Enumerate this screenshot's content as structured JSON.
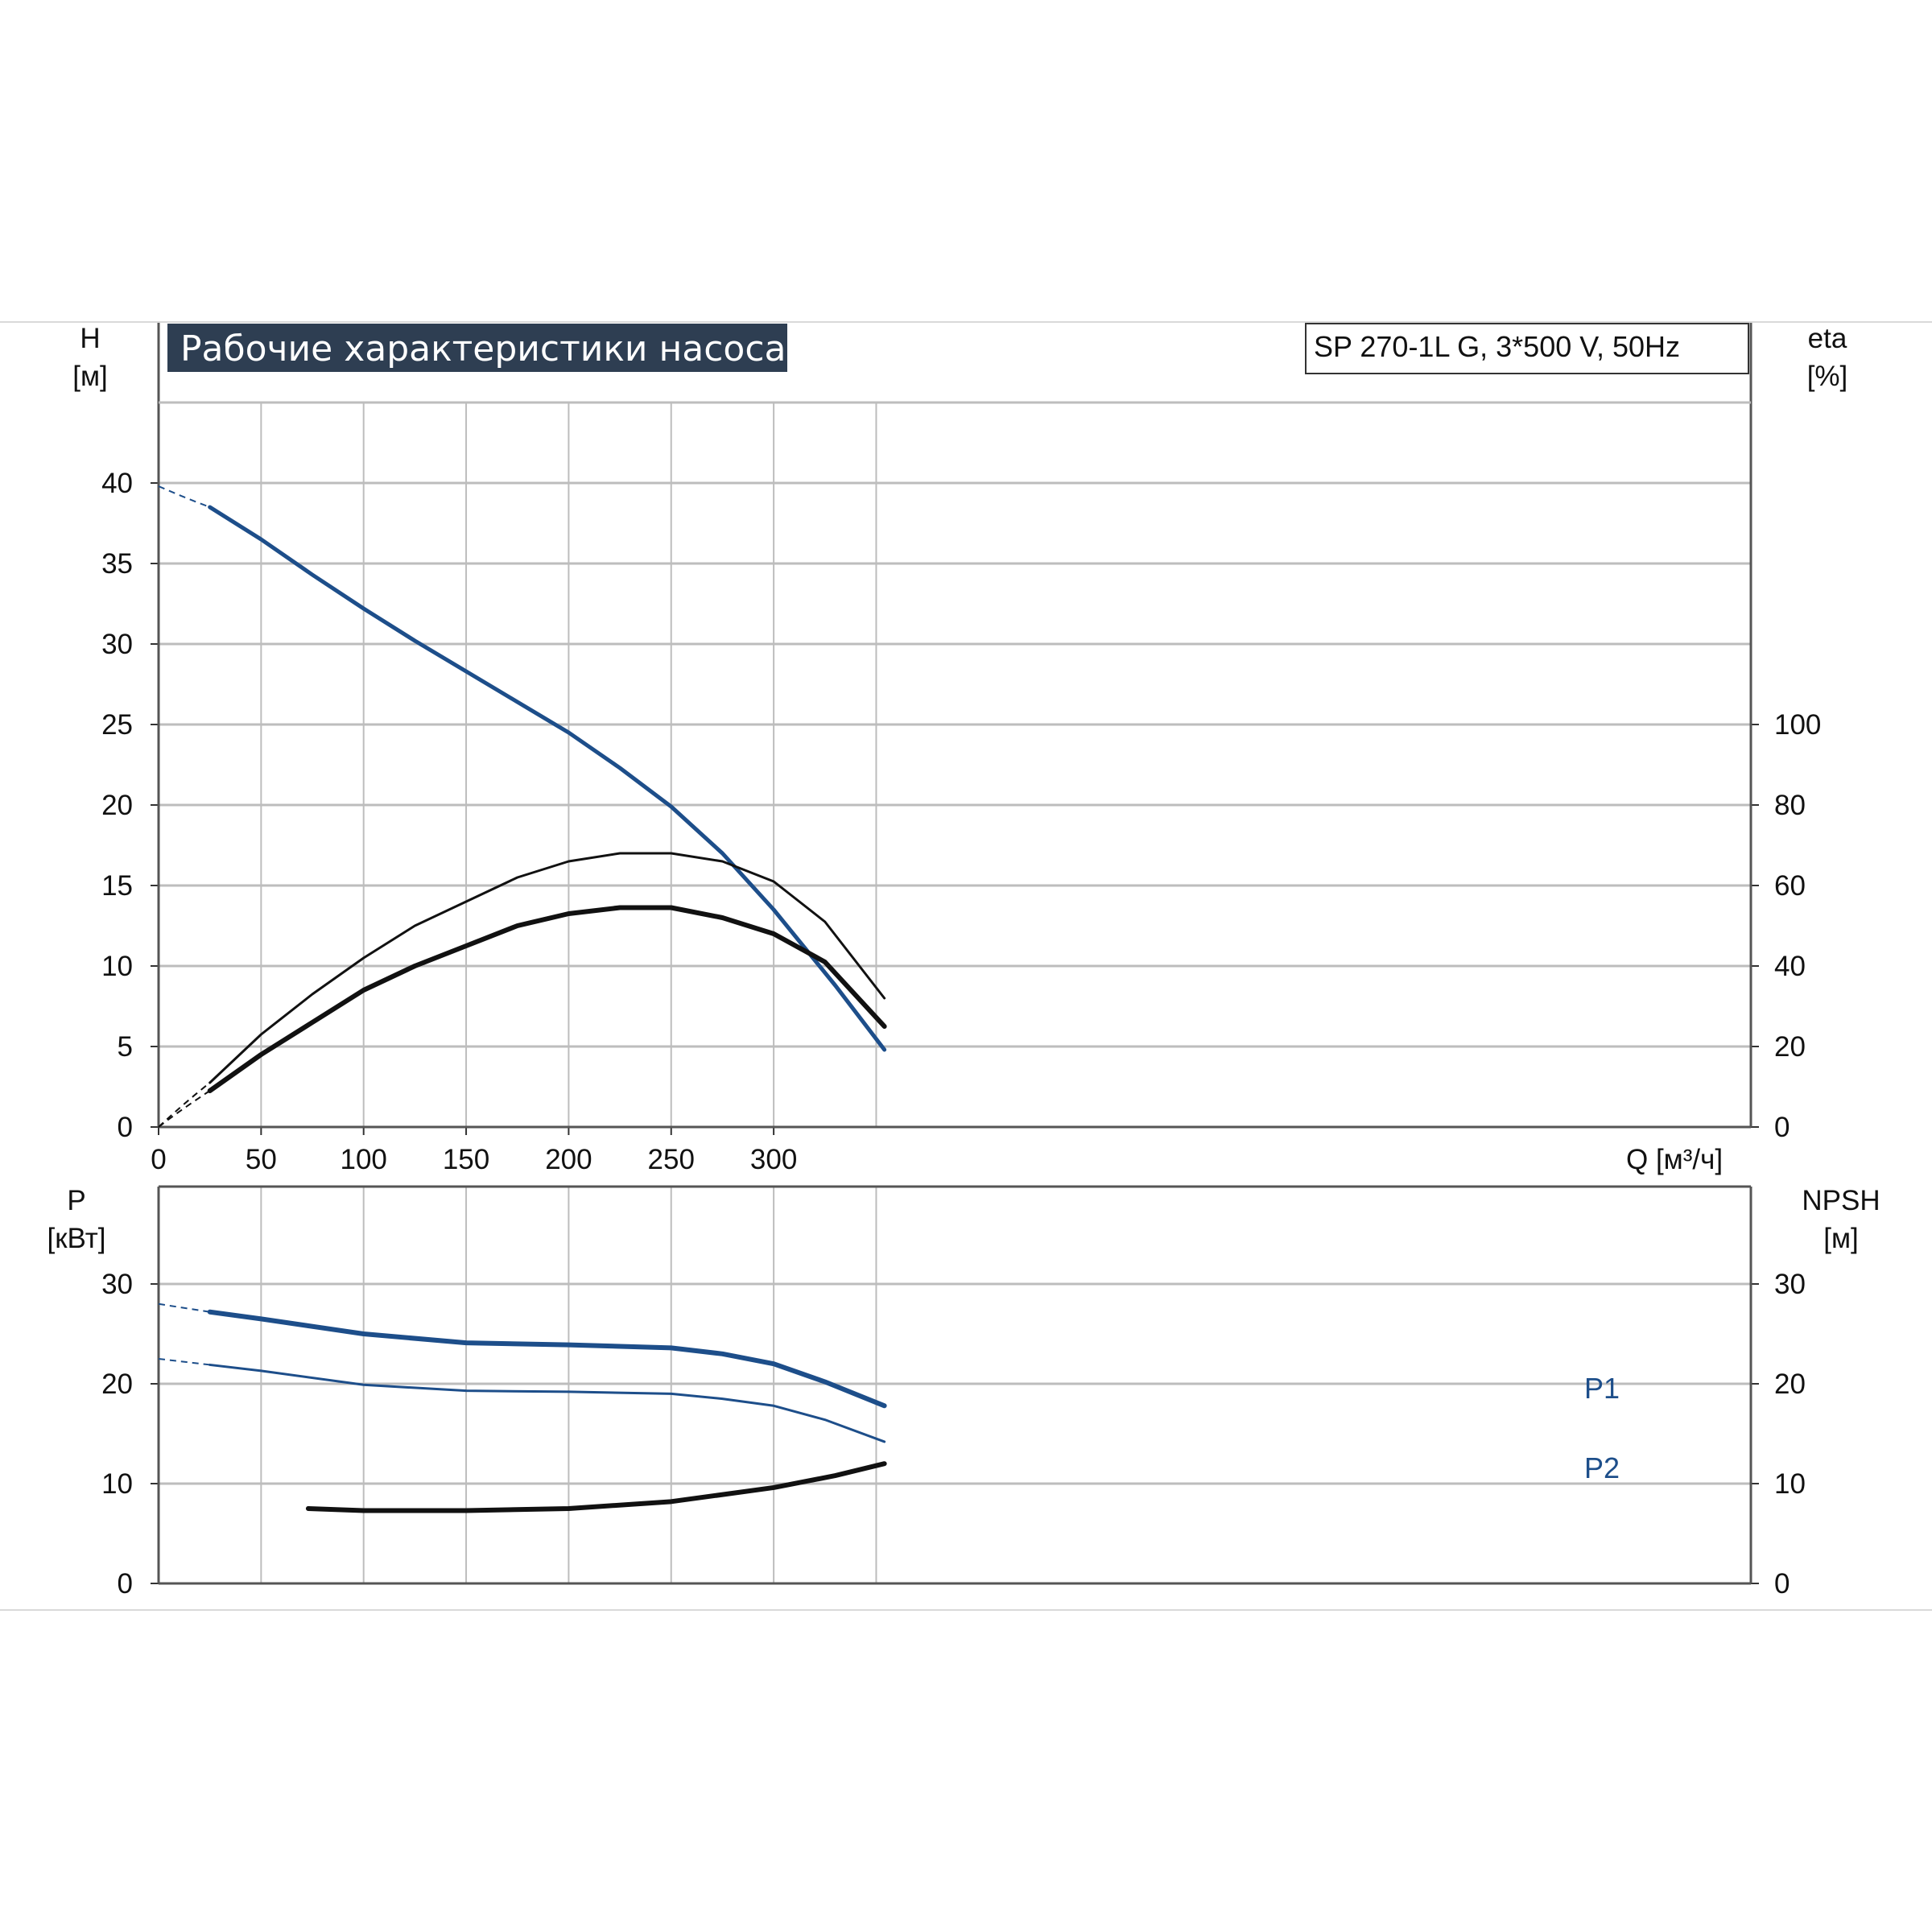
{
  "title": "Рабочие характеристики насоса",
  "model": "SP 270-1L G, 3*500 V, 50Hz",
  "colors": {
    "blue": "#1d4e8a",
    "black": "#111111",
    "grid": "#bdbdbd",
    "title_bg": "#2e3e52"
  },
  "chart_data": [
    {
      "type": "line",
      "panel": "head-efficiency",
      "xlabel": "Q [м³/ч]",
      "x_ticks": [
        "0",
        "50",
        "100",
        "150",
        "200",
        "250",
        "300"
      ],
      "y_left_label": [
        "H",
        "[м]"
      ],
      "y_left_ticks": [
        "0",
        "5",
        "10",
        "15",
        "20",
        "25",
        "30",
        "35",
        "40"
      ],
      "y_right_label": [
        "eta",
        "[%]"
      ],
      "y_right_ticks": [
        "0",
        "20",
        "40",
        "60",
        "80",
        "100"
      ],
      "xlim": [
        0,
        390
      ],
      "ylim_left": [
        0,
        45
      ],
      "ylim_right": [
        0,
        138
      ],
      "grid": true,
      "series": [
        {
          "axis": "left",
          "color": "#1d4e8a",
          "width": 5,
          "x": [
            25,
            50,
            75,
            100,
            125,
            150,
            175,
            200,
            225,
            250,
            275,
            300,
            330,
            354
          ],
          "y": [
            38.5,
            36.5,
            34.3,
            32.2,
            30.2,
            28.3,
            26.4,
            24.5,
            22.3,
            19.9,
            17.0,
            13.5,
            8.8,
            4.8
          ],
          "dashed_from": [
            0,
            39.8
          ]
        },
        {
          "axis": "right",
          "color": "#111111",
          "width": 3,
          "x": [
            25,
            50,
            75,
            100,
            125,
            150,
            175,
            200,
            225,
            250,
            275,
            300,
            325,
            354
          ],
          "y": [
            11,
            23,
            33,
            42,
            50,
            56,
            62,
            66,
            68,
            68,
            66,
            61,
            51,
            32
          ],
          "dashed_from": [
            0,
            0
          ]
        },
        {
          "axis": "right",
          "color": "#111111",
          "width": 6,
          "x": [
            25,
            50,
            75,
            100,
            125,
            150,
            175,
            200,
            225,
            250,
            275,
            300,
            325,
            354
          ],
          "y": [
            9,
            18,
            26,
            34,
            40,
            45,
            50,
            53,
            54.5,
            54.5,
            52,
            48,
            41,
            25
          ],
          "dashed_from": [
            0,
            0
          ]
        }
      ]
    },
    {
      "type": "line",
      "panel": "power-npsh",
      "y_left_label": [
        "P",
        "[кВт]"
      ],
      "y_left_ticks": [
        "0",
        "10",
        "20",
        "30"
      ],
      "y_right_label": [
        "NPSH",
        "[м]"
      ],
      "y_right_ticks": [
        "0",
        "10",
        "20",
        "30"
      ],
      "xlim": [
        0,
        390
      ],
      "ylim_left": [
        0,
        40
      ],
      "grid": true,
      "series": [
        {
          "name": "P1",
          "color": "#1d4e8a",
          "width": 6,
          "x": [
            25,
            50,
            100,
            150,
            200,
            250,
            275,
            300,
            325,
            354
          ],
          "y": [
            27.2,
            26.5,
            25.0,
            24.1,
            23.9,
            23.6,
            23.0,
            22.0,
            20.2,
            17.8
          ],
          "dashed_from": [
            0,
            28.0
          ]
        },
        {
          "name": "P2",
          "color": "#1d4e8a",
          "width": 3,
          "x": [
            25,
            50,
            100,
            150,
            200,
            250,
            275,
            300,
            325,
            354
          ],
          "y": [
            21.9,
            21.3,
            19.9,
            19.3,
            19.2,
            19.0,
            18.5,
            17.8,
            16.4,
            14.2
          ],
          "dashed_from": [
            0,
            22.5
          ]
        },
        {
          "color": "#111111",
          "width": 6,
          "x": [
            73,
            100,
            150,
            200,
            250,
            300,
            330,
            354
          ],
          "y": [
            7.5,
            7.3,
            7.3,
            7.5,
            8.2,
            9.6,
            10.8,
            12.0
          ]
        }
      ]
    }
  ]
}
